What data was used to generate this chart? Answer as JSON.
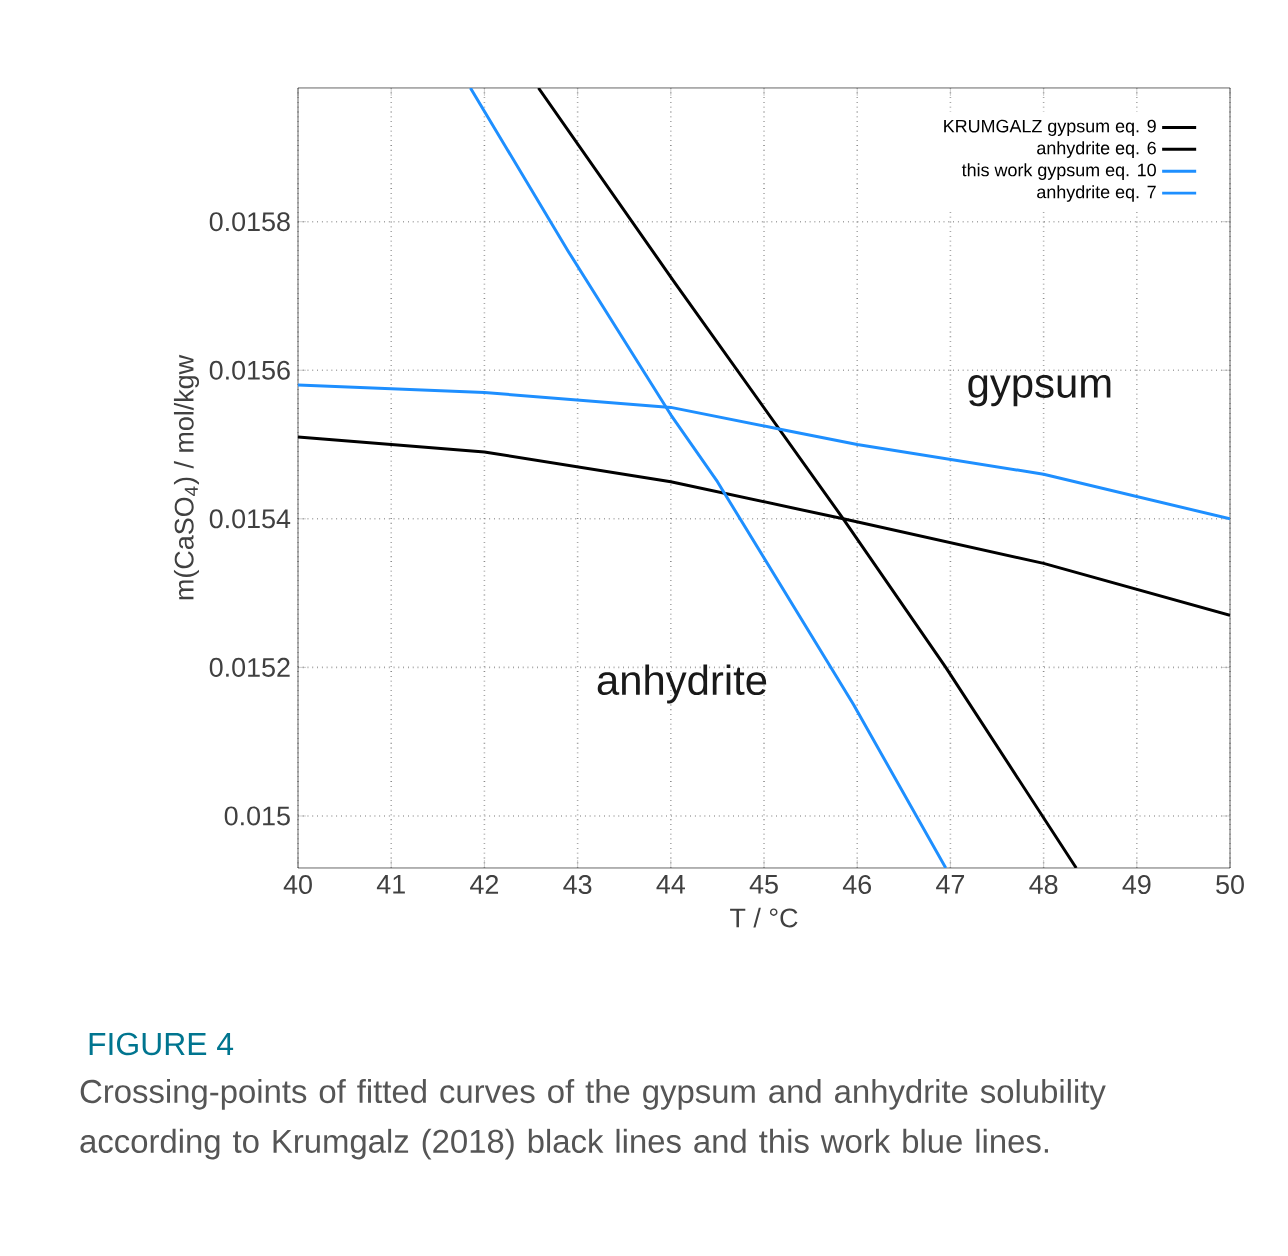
{
  "chart_data": {
    "type": "line",
    "xlabel": "T / °C",
    "ylabel": "m(CaSO$_{4}$) / mol/kgw",
    "xlim": [
      40,
      50
    ],
    "ylim": [
      0.01493,
      0.01598
    ],
    "xticks": [
      40,
      41,
      42,
      43,
      44,
      45,
      46,
      47,
      48,
      49,
      50
    ],
    "yticks": [
      0.015,
      0.0152,
      0.0154,
      0.0156,
      0.0158
    ],
    "grid": true,
    "legend": "top right",
    "series": [
      {
        "name": "KRUMGALZ gypsum    eq. 9",
        "color": "#000000",
        "x": [
          40,
          42,
          44,
          45.85,
          48,
          50
        ],
        "values": [
          0.01551,
          0.01549,
          0.01545,
          0.0154,
          0.01534,
          0.01527
        ]
      },
      {
        "name": "anhydrite eq. 6",
        "color": "#000000",
        "x": [
          42.58,
          44.03,
          45.85,
          46.95,
          48.35
        ],
        "values": [
          0.01598,
          0.01572,
          0.0154,
          0.0152,
          0.01493
        ]
      },
      {
        "name": "this work  gypsum    eq. 10",
        "color": "#1e8fff",
        "x": [
          40,
          42,
          44,
          45.2,
          46,
          48,
          50
        ],
        "values": [
          0.01558,
          0.01557,
          0.01555,
          0.01552,
          0.0155,
          0.01546,
          0.0154
        ]
      },
      {
        "name": "anhydrite eq. 7",
        "color": "#1e8fff",
        "x": [
          41.85,
          42.9,
          44.0,
          44.5,
          45.96,
          46.95
        ],
        "values": [
          0.01598,
          0.01576,
          0.01554,
          0.01545,
          0.01515,
          0.01493
        ]
      }
    ],
    "annotations": [
      "gypsum",
      "anhydrite",
      "FIGURE 4",
      "Crossing-points of fitted curves of the gypsum and anhydrite solubility according to Krumgalz (2018) black lines and this work blue lines."
    ]
  }
}
